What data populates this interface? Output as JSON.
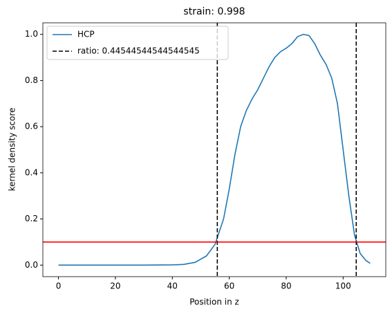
{
  "chart_data": {
    "type": "line",
    "title": "strain: 0.998",
    "xlabel": "Position in z",
    "ylabel": "kernel density score",
    "x": [
      0,
      10,
      20,
      30,
      40,
      44,
      48,
      52,
      55,
      58,
      60,
      62,
      64,
      66,
      68,
      70,
      72,
      74,
      76,
      78,
      80,
      82,
      84,
      86,
      88,
      90,
      92,
      94,
      96,
      98,
      100,
      102,
      104,
      106,
      108,
      109.5
    ],
    "series": [
      {
        "name": "HCP",
        "color": "#1f77b4",
        "values": [
          0,
          0,
          0,
          0,
          0.001,
          0.003,
          0.012,
          0.04,
          0.09,
          0.2,
          0.33,
          0.48,
          0.6,
          0.67,
          0.72,
          0.76,
          0.81,
          0.86,
          0.9,
          0.925,
          0.94,
          0.96,
          0.99,
          1.0,
          0.995,
          0.96,
          0.91,
          0.87,
          0.81,
          0.7,
          0.5,
          0.3,
          0.13,
          0.05,
          0.02,
          0.008
        ]
      }
    ],
    "vlines": {
      "label": "ratio: 0.44544544544544545",
      "color": "#000000",
      "x": [
        55.8,
        104.6
      ]
    },
    "hline": {
      "y": 0.1,
      "color": "#ff0000"
    },
    "xlim": [
      -5.475,
      114.975
    ],
    "ylim": [
      -0.05,
      1.05
    ],
    "xticks": [
      0,
      20,
      40,
      60,
      80,
      100
    ],
    "yticks": [
      {
        "value": 0,
        "label": "0.0"
      },
      0.2,
      0.4,
      0.6,
      0.8,
      {
        "value": 1,
        "label": "1.0"
      }
    ],
    "legend": "upper left"
  }
}
